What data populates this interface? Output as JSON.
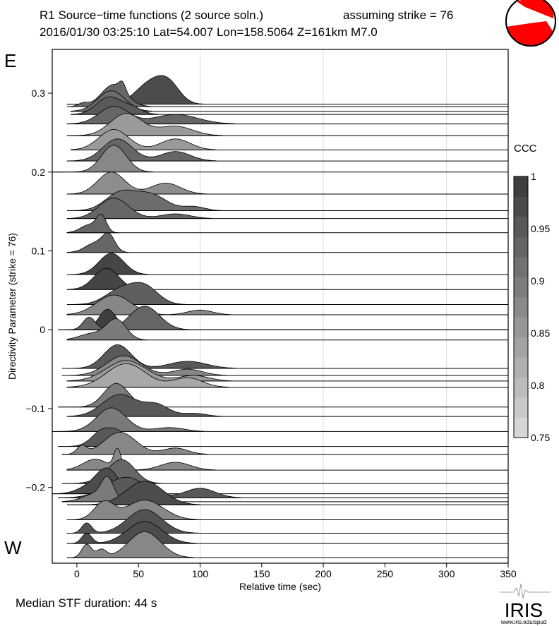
{
  "header": {
    "title": "R1 Source−time functions (2 source soln.)",
    "strike_note": "assuming strike = 76",
    "event_line": "2016/01/30 03:25:10  Lat=54.007 Lon=158.5064  Z=161km  M7.0"
  },
  "labels": {
    "east": "E",
    "west": "W",
    "median": "Median STF duration: 44 s"
  },
  "logo": {
    "name": "IRIS",
    "url": "www.iris.edu/spud"
  },
  "colors": {
    "beachball": "#ff0000",
    "grid": "#dddddd",
    "ccc_low": "#dcdcdc",
    "ccc_high": "#383838"
  },
  "chart_data": {
    "type": "area",
    "title": "R1 Source−time functions (2 source soln.)",
    "xlabel": "Relative time (sec)",
    "ylabel": "Directivity Parameter (strike = 76)",
    "xlim": [
      -20,
      350
    ],
    "ylim": [
      -0.296,
      0.3555
    ],
    "xticks": [
      0,
      50,
      100,
      150,
      200,
      250,
      300,
      350
    ],
    "yticks": [
      -0.2,
      -0.1,
      0,
      0.1,
      0.2,
      0.3
    ],
    "ytick_labels": [
      "−0.2",
      "−0.1",
      "0",
      "0.1",
      "0.2",
      "0.3"
    ],
    "grid_x": [
      100,
      200,
      300
    ],
    "colorbar": {
      "title": "CCC",
      "range": [
        0.75,
        1
      ],
      "ticks": [
        0.75,
        0.8,
        0.85,
        0.9,
        0.95,
        1
      ],
      "tick_labels": [
        "0.75",
        "0.8",
        "0.85",
        "0.9",
        "0.95",
        "1"
      ],
      "levels": 13
    },
    "traces": [
      {
        "d": 0.286,
        "ccc": 0.97,
        "start": -8,
        "pulses": [
          [
            60,
            12,
            0.027
          ],
          [
            75,
            9,
            0.02
          ]
        ]
      },
      {
        "d": 0.283,
        "ccc": 0.93,
        "start": -8,
        "pulses": [
          [
            30,
            10,
            0.028
          ],
          [
            37,
            2.5,
            0.01
          ],
          [
            5,
            4,
            0.004
          ]
        ]
      },
      {
        "d": 0.277,
        "ccc": 0.92,
        "start": -5,
        "pulses": [
          [
            28,
            11,
            0.026
          ]
        ]
      },
      {
        "d": 0.273,
        "ccc": 0.95,
        "start": -5,
        "pulses": [
          [
            26,
            10,
            0.022
          ],
          [
            45,
            8,
            0.008
          ]
        ]
      },
      {
        "d": 0.261,
        "ccc": 0.93,
        "start": -8,
        "pulses": [
          [
            30,
            12,
            0.022
          ],
          [
            80,
            18,
            0.012
          ]
        ]
      },
      {
        "d": 0.246,
        "ccc": 0.85,
        "start": -8,
        "pulses": [
          [
            40,
            13,
            0.028
          ],
          [
            80,
            14,
            0.012
          ]
        ]
      },
      {
        "d": 0.228,
        "ccc": 0.85,
        "start": -5,
        "pulses": [
          [
            30,
            12,
            0.026
          ],
          [
            80,
            12,
            0.014
          ]
        ]
      },
      {
        "d": 0.214,
        "ccc": 0.93,
        "start": -8,
        "pulses": [
          [
            33,
            12,
            0.028
          ],
          [
            80,
            12,
            0.012
          ]
        ]
      },
      {
        "d": 0.2,
        "ccc": 0.88,
        "start": -20,
        "pulses": [
          [
            30,
            10,
            0.034
          ]
        ]
      },
      {
        "d": 0.172,
        "ccc": 0.87,
        "start": -8,
        "pulses": [
          [
            28,
            11,
            0.028
          ],
          [
            72,
            12,
            0.014
          ]
        ]
      },
      {
        "d": 0.151,
        "ccc": 0.92,
        "start": -8,
        "pulses": [
          [
            35,
            12,
            0.022
          ],
          [
            60,
            13,
            0.02
          ],
          [
            95,
            9,
            0.005
          ]
        ]
      },
      {
        "d": 0.141,
        "ccc": 0.93,
        "start": -8,
        "pulses": [
          [
            30,
            12,
            0.026
          ],
          [
            80,
            12,
            0.006
          ]
        ]
      },
      {
        "d": 0.123,
        "ccc": 0.93,
        "start": -8,
        "pulses": [
          [
            20,
            4,
            0.02
          ],
          [
            10,
            7,
            0.01
          ]
        ]
      },
      {
        "d": 0.098,
        "ccc": 0.93,
        "start": -8,
        "pulses": [
          [
            26,
            5,
            0.02
          ],
          [
            15,
            8,
            0.012
          ]
        ]
      },
      {
        "d": 0.07,
        "ccc": 0.98,
        "start": -8,
        "pulses": [
          [
            28,
            10,
            0.027
          ]
        ]
      },
      {
        "d": 0.051,
        "ccc": 0.98,
        "start": -8,
        "pulses": [
          [
            24,
            10,
            0.027
          ]
        ]
      },
      {
        "d": 0.032,
        "ccc": 0.94,
        "start": -8,
        "pulses": [
          [
            35,
            12,
            0.018
          ],
          [
            55,
            11,
            0.022
          ]
        ]
      },
      {
        "d": 0.019,
        "ccc": 0.88,
        "start": -8,
        "pulses": [
          [
            30,
            14,
            0.025
          ],
          [
            100,
            10,
            0.006
          ]
        ]
      },
      {
        "d": 0.0,
        "ccc": 0.99,
        "start": -15,
        "pulses": [
          [
            25,
            7,
            0.026
          ]
        ]
      },
      {
        "d": 0.0,
        "ccc": 0.93,
        "start": -8,
        "pulses": [
          [
            10,
            5,
            0.016
          ],
          [
            55,
            12,
            0.03
          ]
        ]
      },
      {
        "d": -0.013,
        "ccc": 0.9,
        "start": -8,
        "pulses": [
          [
            32,
            8,
            0.026
          ],
          [
            12,
            10,
            0.008
          ]
        ]
      },
      {
        "d": -0.049,
        "ccc": 0.95,
        "start": -12,
        "pulses": [
          [
            33,
            11,
            0.03
          ],
          [
            90,
            15,
            0.009
          ]
        ]
      },
      {
        "d": -0.058,
        "ccc": 0.88,
        "start": -12,
        "pulses": [
          [
            38,
            14,
            0.025
          ],
          [
            90,
            12,
            0.008
          ]
        ]
      },
      {
        "d": -0.065,
        "ccc": 0.85,
        "start": -8,
        "pulses": [
          [
            40,
            16,
            0.026
          ],
          [
            95,
            12,
            0.007
          ]
        ]
      },
      {
        "d": -0.073,
        "ccc": 0.83,
        "start": -8,
        "pulses": [
          [
            40,
            16,
            0.03
          ],
          [
            90,
            12,
            0.012
          ]
        ]
      },
      {
        "d": -0.098,
        "ccc": 0.9,
        "start": -15,
        "pulses": [
          [
            32,
            10,
            0.03
          ]
        ]
      },
      {
        "d": -0.11,
        "ccc": 0.95,
        "start": -8,
        "pulses": [
          [
            35,
            14,
            0.028
          ],
          [
            65,
            10,
            0.014
          ],
          [
            95,
            10,
            0.004
          ]
        ]
      },
      {
        "d": -0.129,
        "ccc": 0.9,
        "start": -20,
        "pulses": [
          [
            28,
            12,
            0.03
          ],
          [
            75,
            12,
            0.005
          ]
        ]
      },
      {
        "d": -0.148,
        "ccc": 0.95,
        "start": -15,
        "pulses": [
          [
            22,
            9,
            0.022
          ],
          [
            35,
            6,
            0.012
          ]
        ]
      },
      {
        "d": -0.158,
        "ccc": 0.88,
        "start": -12,
        "pulses": [
          [
            4,
            4,
            0.01
          ],
          [
            35,
            13,
            0.028
          ],
          [
            80,
            10,
            0.008
          ]
        ]
      },
      {
        "d": -0.178,
        "ccc": 0.88,
        "start": -8,
        "pulses": [
          [
            33,
            3,
            0.025
          ],
          [
            15,
            10,
            0.014
          ],
          [
            80,
            12,
            0.01
          ]
        ]
      },
      {
        "d": -0.195,
        "ccc": 0.93,
        "start": -12,
        "pulses": [
          [
            38,
            10,
            0.022
          ],
          [
            30,
            12,
            0.01
          ]
        ]
      },
      {
        "d": -0.208,
        "ccc": 0.97,
        "start": -20,
        "pulses": [
          [
            25,
            9,
            0.03
          ],
          [
            10,
            10,
            0.008
          ]
        ]
      },
      {
        "d": -0.213,
        "ccc": 0.95,
        "start": -15,
        "pulses": [
          [
            40,
            16,
            0.026
          ],
          [
            100,
            12,
            0.012
          ]
        ]
      },
      {
        "d": -0.218,
        "ccc": 0.9,
        "start": -12,
        "pulses": [
          [
            25,
            5,
            0.026
          ],
          [
            15,
            10,
            0.01
          ]
        ]
      },
      {
        "d": -0.222,
        "ccc": 0.97,
        "start": -8,
        "pulses": [
          [
            55,
            15,
            0.03
          ]
        ]
      },
      {
        "d": -0.241,
        "ccc": 0.88,
        "start": -8,
        "pulses": [
          [
            22,
            8,
            0.022
          ],
          [
            55,
            15,
            0.025
          ]
        ]
      },
      {
        "d": -0.258,
        "ccc": 0.96,
        "start": -8,
        "pulses": [
          [
            8,
            4,
            0.013
          ],
          [
            55,
            14,
            0.03
          ]
        ]
      },
      {
        "d": -0.271,
        "ccc": 0.97,
        "start": -8,
        "pulses": [
          [
            8,
            4,
            0.013
          ],
          [
            55,
            14,
            0.028
          ]
        ]
      },
      {
        "d": -0.289,
        "ccc": 0.88,
        "start": -8,
        "pulses": [
          [
            8,
            4,
            0.017
          ],
          [
            20,
            4,
            0.01
          ],
          [
            55,
            13,
            0.033
          ]
        ]
      }
    ]
  }
}
